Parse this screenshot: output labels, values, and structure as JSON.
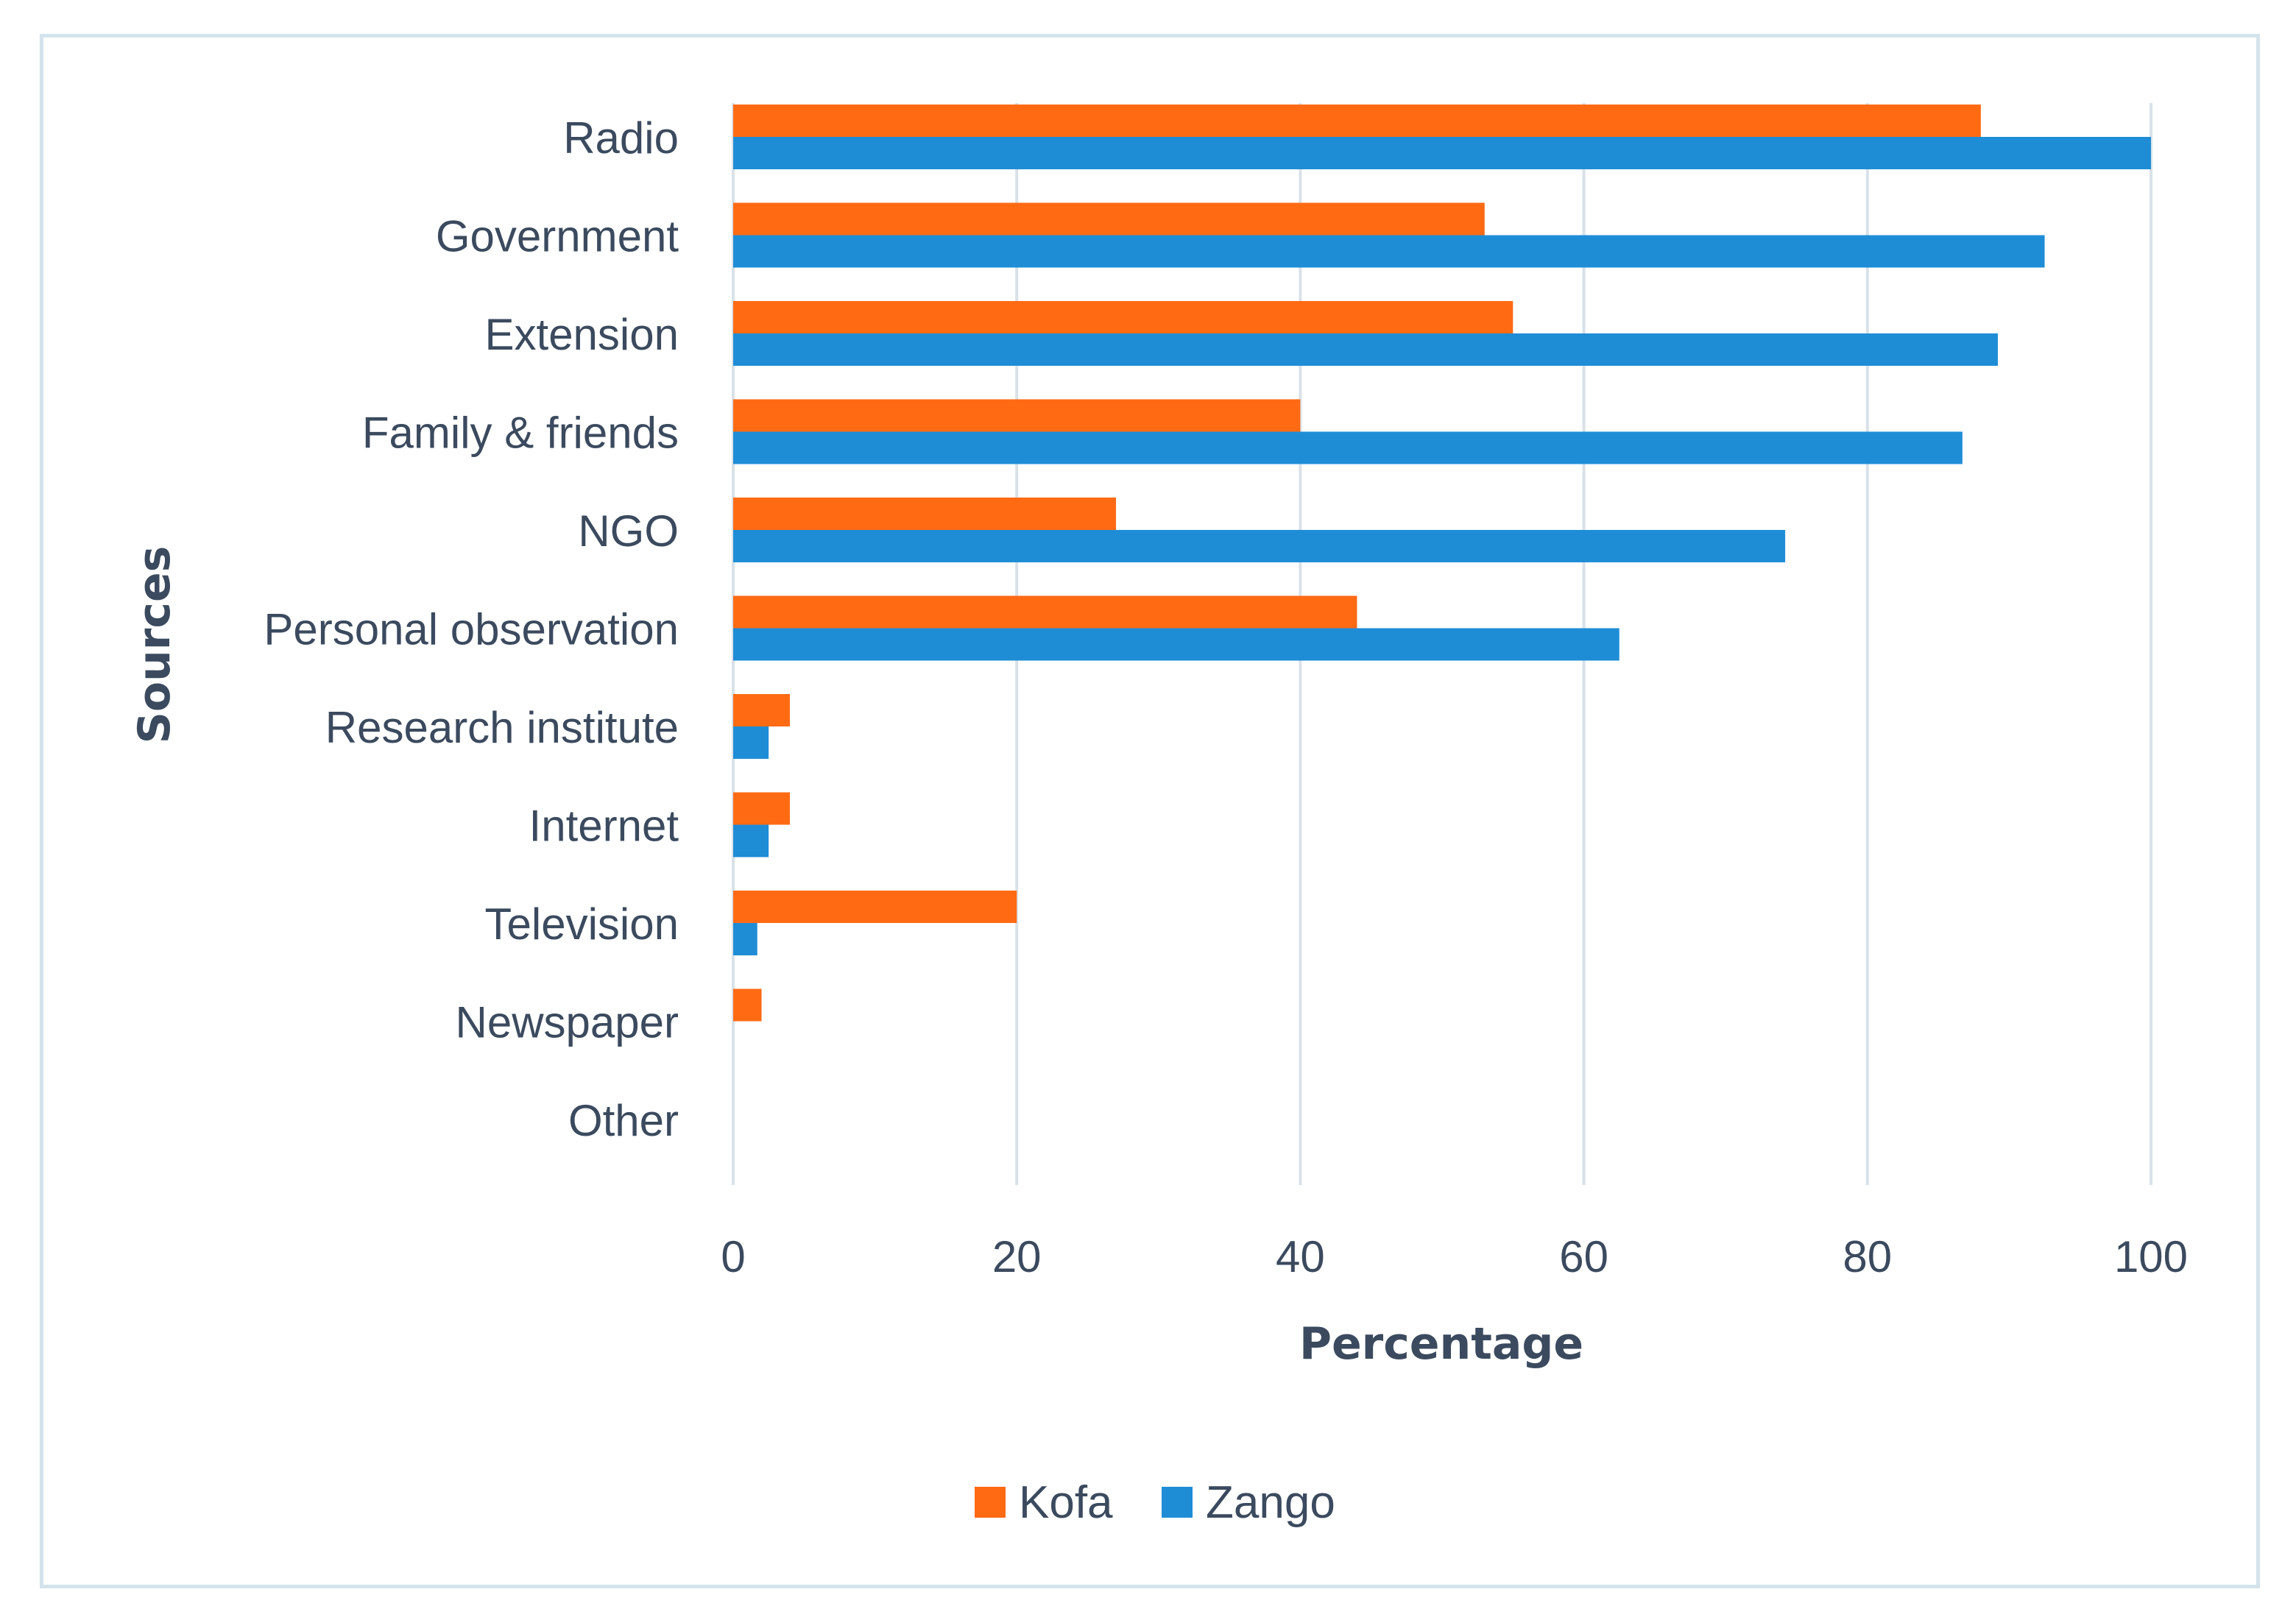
{
  "chart_data": {
    "type": "bar",
    "orientation": "horizontal",
    "title": "",
    "xlabel": "Percentage",
    "ylabel": "Sources",
    "xlim": [
      0,
      100
    ],
    "xticks": [
      "0",
      "20",
      "40",
      "60",
      "80",
      "100"
    ],
    "categories": [
      "Radio",
      "Government",
      "Extension",
      "Family & friends",
      "NGO",
      "Personal observation",
      "Research institute",
      "Internet",
      "Television",
      "Newspaper",
      "Other"
    ],
    "series": [
      {
        "name": "Kofa",
        "color": "#ff6a13",
        "values": [
          88,
          53,
          55,
          40,
          27,
          44,
          4,
          4,
          20,
          2,
          0
        ]
      },
      {
        "name": "Zango",
        "color": "#1f8dd6",
        "values": [
          100,
          92.5,
          89.2,
          86.7,
          74.2,
          62.5,
          2.5,
          2.5,
          1.7,
          0,
          0
        ]
      }
    ],
    "grid": true,
    "legend_position": "bottom"
  }
}
